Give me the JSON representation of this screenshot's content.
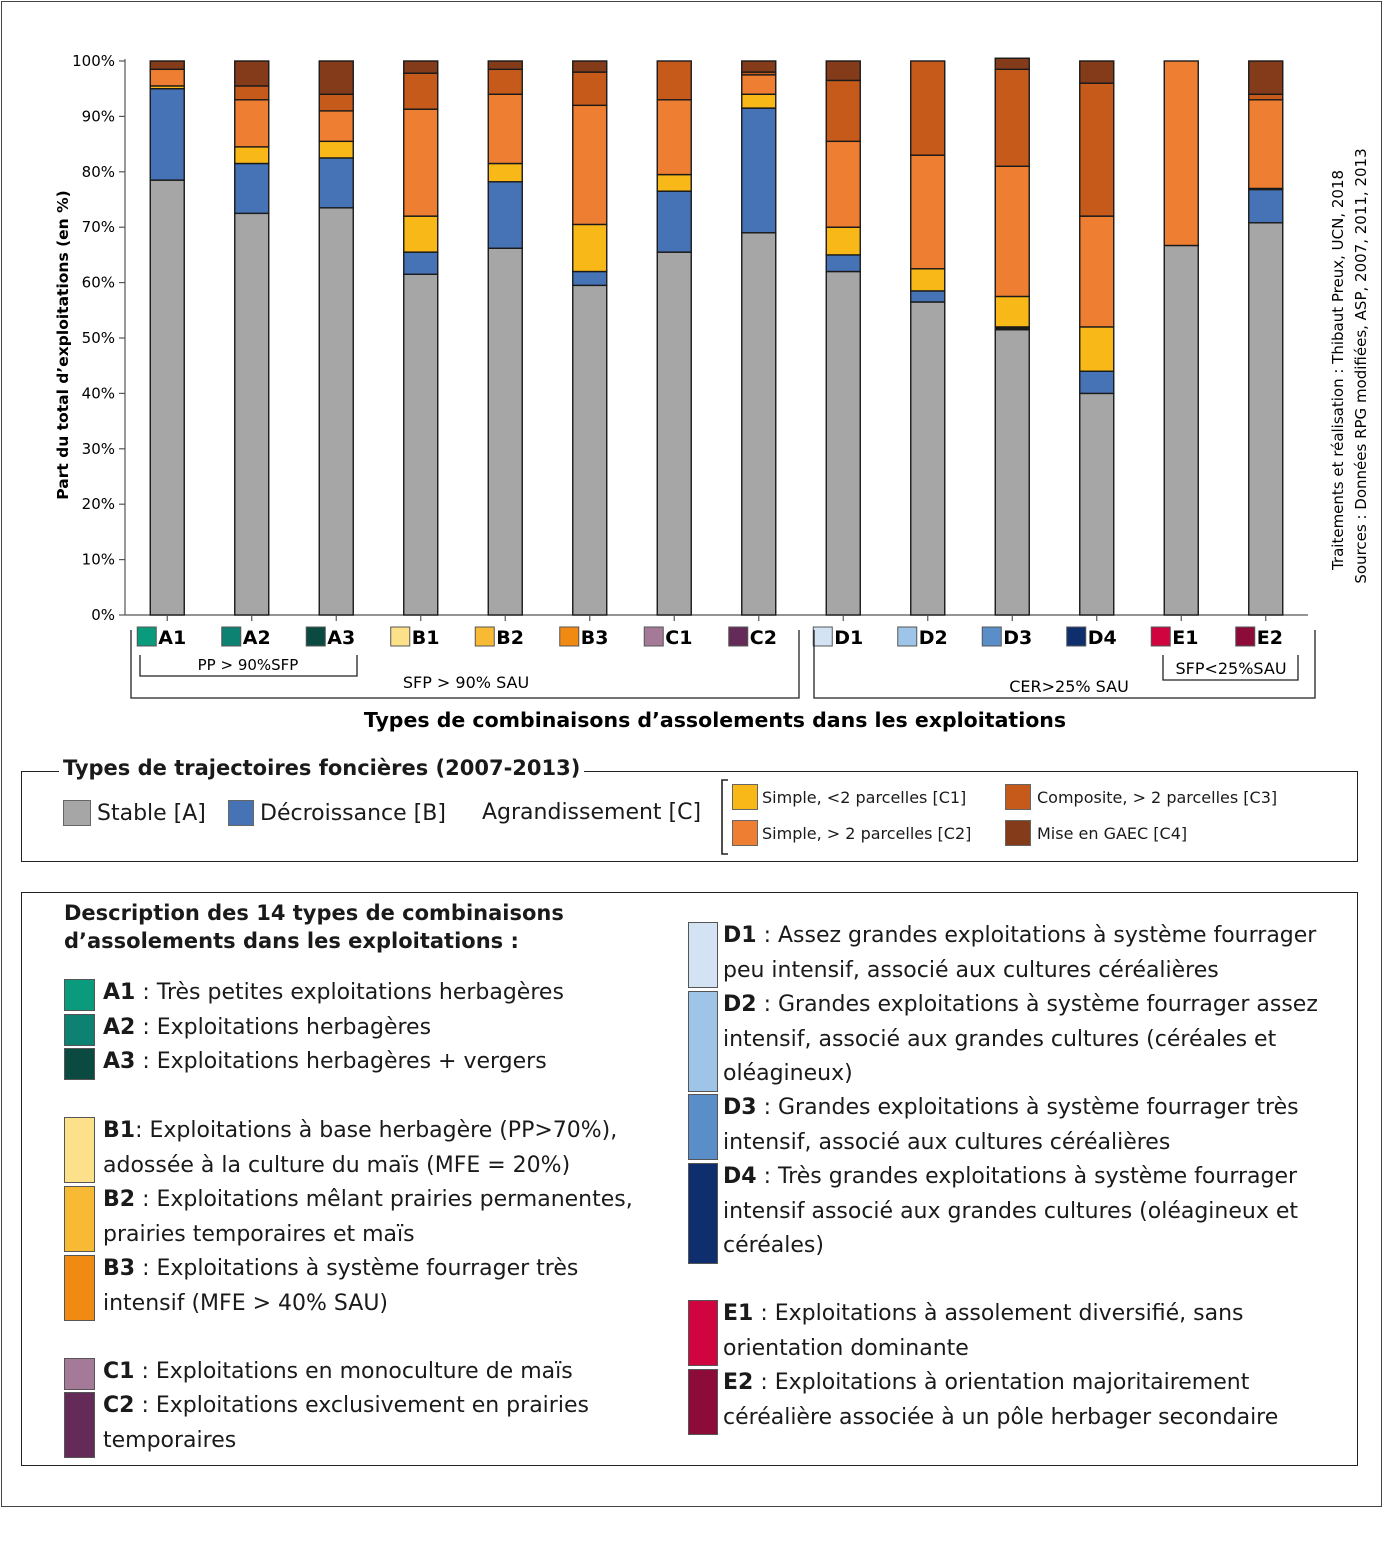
{
  "chart_data": {
    "type": "bar",
    "stacked": true,
    "ylabel": "Part du total d’exploitations (en %)",
    "xlabel": "Types de combinaisons d’assolements dans les exploitations",
    "yticks": [
      "0%",
      "10%",
      "20%",
      "30%",
      "40%",
      "50%",
      "60%",
      "70%",
      "80%",
      "90%",
      "100%"
    ],
    "ylim": [
      0,
      100
    ],
    "grid": false,
    "categories": [
      "A1",
      "A2",
      "A3",
      "B1",
      "B2",
      "B3",
      "C1",
      "C2",
      "D1",
      "D2",
      "D3",
      "D4",
      "E1",
      "E2"
    ],
    "category_colors": [
      "#0a9a7c",
      "#0e8272",
      "#0b4a40",
      "#fde18a",
      "#f8ba35",
      "#f08a12",
      "#a57a98",
      "#642a58",
      "#d4e3f4",
      "#9ec4e8",
      "#5a8ec9",
      "#0f2e6d",
      "#d0043f",
      "#8c0b39"
    ],
    "series": [
      {
        "name": "Stable [A]",
        "color": "#a6a6a6",
        "values": [
          78.5,
          72.5,
          73.5,
          61.5,
          66.2,
          59.5,
          65.5,
          69.0,
          62.0,
          56.5,
          51.5,
          40.0,
          66.7,
          70.8
        ]
      },
      {
        "name": "Décroissance [B]",
        "color": "#4672b6",
        "values": [
          16.5,
          9.0,
          9.0,
          4.0,
          12.0,
          2.5,
          11.0,
          22.5,
          3.0,
          2.0,
          0.0,
          4.0,
          0.0,
          6.0
        ]
      },
      {
        "name": "Simple, <2 parcelles [C1]",
        "color": "#f8b818",
        "values": [
          0.5,
          3.0,
          3.0,
          6.5,
          3.3,
          8.5,
          3.0,
          2.5,
          5.0,
          4.0,
          5.5,
          8.0,
          0.0,
          0.2
        ]
      },
      {
        "name": "Simple, > 2 parcelles [C2]",
        "color": "#ee7e32",
        "values": [
          3.0,
          8.5,
          5.5,
          19.3,
          12.5,
          21.5,
          13.5,
          3.5,
          15.5,
          20.5,
          23.5,
          20.0,
          33.3,
          16.0
        ]
      },
      {
        "name": "Composite, > 2 parcelles [C3]",
        "color": "#c55a1b",
        "values": [
          0.0,
          2.5,
          3.0,
          6.5,
          4.5,
          6.0,
          7.0,
          0.5,
          11.0,
          17.0,
          17.5,
          24.0,
          0.0,
          1.0
        ]
      },
      {
        "name": "Mise en GAEC [C4]",
        "color": "#843b1a",
        "values": [
          1.5,
          4.5,
          6.0,
          2.2,
          1.5,
          2.0,
          0.0,
          2.0,
          3.5,
          0.0,
          2.0,
          4.0,
          0.0,
          6.0
        ]
      }
    ],
    "extra_segments": [
      {
        "category": "D3",
        "after_series": 1,
        "value": 0.5,
        "color": "#1a1a1a"
      }
    ],
    "group_labels": [
      {
        "label": "PP > 90%SFP"
      },
      {
        "label": "SFP > 90% SAU"
      },
      {
        "label": "CER>25% SAU"
      },
      {
        "label": "SFP<25%SAU"
      }
    ]
  },
  "source_note": {
    "line1": "Traitements et réalisation : Thibaut Preux, UCN, 2018",
    "line2": "Sources : Données RPG modifiées, ASP, 2007, 2011, 2013"
  },
  "trajectoires": {
    "title": "Types de trajectoires foncières (2007-2013)",
    "stable": {
      "label": "Stable [A]",
      "color": "#a6a6a6"
    },
    "decroissance": {
      "label": "Décroissance [B]",
      "color": "#4672b6"
    },
    "agrandissement": "Agrandissement [C]",
    "c1": {
      "label": "Simple, <2 parcelles [C1]",
      "color": "#f8b818"
    },
    "c2": {
      "label": "Simple, > 2 parcelles [C2]",
      "color": "#ee7e32"
    },
    "c3": {
      "label": "Composite, > 2 parcelles [C3]",
      "color": "#c55a1b"
    },
    "c4": {
      "label": "Mise en GAEC [C4]",
      "color": "#843b1a"
    }
  },
  "description": {
    "title_line1": "Description des 14 types de combinaisons",
    "title_line2": "d’assolements dans les exploitations :",
    "items": [
      {
        "code": "A1",
        "color": "#0a9a7c",
        "lines": [
          " : Très petites exploitations herbagères"
        ]
      },
      {
        "code": "A2",
        "color": "#0e8272",
        "lines": [
          " : Exploitations herbagères"
        ]
      },
      {
        "code": "A3",
        "color": "#0b4a40",
        "lines": [
          " : Exploitations herbagères + vergers"
        ]
      },
      {
        "code": "B1",
        "color": "#fde18a",
        "lines": [
          ": Exploitations à base herbagère (PP>70%),",
          "adossée à la culture du maïs (MFE = 20%)"
        ]
      },
      {
        "code": "B2",
        "color": "#f8ba35",
        "lines": [
          " : Exploitations mêlant prairies permanentes,",
          "prairies temporaires et maïs"
        ]
      },
      {
        "code": "B3",
        "color": "#f08a12",
        "lines": [
          " : Exploitations à système fourrager très",
          "intensif (MFE > 40% SAU)"
        ]
      },
      {
        "code": "C1",
        "color": "#a57a98",
        "lines": [
          " : Exploitations en monoculture de maïs"
        ]
      },
      {
        "code": "C2",
        "color": "#642a58",
        "lines": [
          " : Exploitations exclusivement en prairies",
          "temporaires"
        ]
      },
      {
        "code": "D1",
        "color": "#d4e3f4",
        "lines": [
          " : Assez grandes exploitations à système fourrager",
          "peu intensif, associé aux cultures céréalières"
        ]
      },
      {
        "code": "D2",
        "color": "#9ec4e8",
        "lines": [
          " : Grandes exploitations à système fourrager assez",
          "intensif, associé aux grandes cultures (céréales et",
          "oléagineux)"
        ]
      },
      {
        "code": "D3",
        "color": "#5a8ec9",
        "lines": [
          " : Grandes exploitations à système fourrager très",
          "intensif, associé aux cultures céréalières"
        ]
      },
      {
        "code": "D4",
        "color": "#0f2e6d",
        "lines": [
          " : Très grandes exploitations à système fourrager",
          "intensif associé aux grandes cultures (oléagineux et",
          "céréales)"
        ]
      },
      {
        "code": "E1",
        "color": "#d0043f",
        "lines": [
          " : Exploitations à assolement diversifié, sans",
          "orientation dominante"
        ]
      },
      {
        "code": "E2",
        "color": "#8c0b39",
        "lines": [
          " : Exploitations à orientation majoritairement",
          "céréalière associée à un pôle herbager secondaire"
        ]
      }
    ]
  }
}
